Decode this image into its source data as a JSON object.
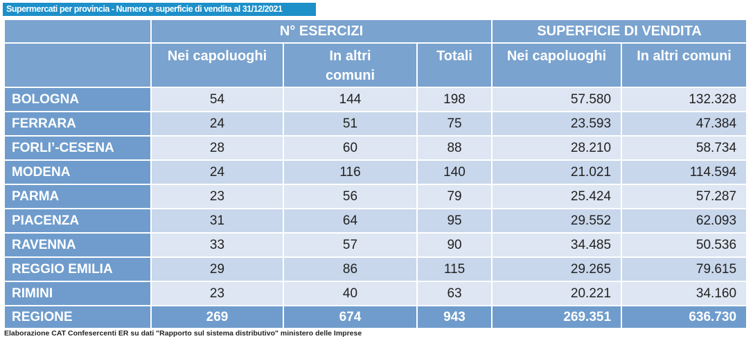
{
  "title": "Supermercati per provincia - Numero e superficie di vendita al 31/12/2021",
  "header": {
    "group_esercizi": "N° ESERCIZI",
    "group_superficie": "SUPERFICIE DI VENDITA",
    "columns": [
      "Nei capoluoghi",
      "In altri comuni",
      "Totali",
      "Nei capoluoghi",
      "In altri comuni"
    ]
  },
  "rows": [
    {
      "label": "BOLOGNA",
      "values": [
        "54",
        "144",
        "198",
        "57.580",
        "132.328"
      ]
    },
    {
      "label": "FERRARA",
      "values": [
        "24",
        "51",
        "75",
        "23.593",
        "47.384"
      ]
    },
    {
      "label": "FORLI’-CESENA",
      "values": [
        "28",
        "60",
        "88",
        "28.210",
        "58.734"
      ]
    },
    {
      "label": "MODENA",
      "values": [
        "24",
        "116",
        "140",
        "21.021",
        "114.594"
      ]
    },
    {
      "label": "PARMA",
      "values": [
        "23",
        "56",
        "79",
        "25.424",
        "57.287"
      ]
    },
    {
      "label": "PIACENZA",
      "values": [
        "31",
        "64",
        "95",
        "29.552",
        "62.093"
      ]
    },
    {
      "label": "RAVENNA",
      "values": [
        "33",
        "57",
        "90",
        "34.485",
        "50.536"
      ]
    },
    {
      "label": "REGGIO EMILIA",
      "values": [
        "29",
        "86",
        "115",
        "29.265",
        "79.615"
      ]
    },
    {
      "label": "RIMINI",
      "values": [
        "23",
        "40",
        "63",
        "20.221",
        "34.160"
      ]
    }
  ],
  "total": {
    "label": "REGIONE",
    "values": [
      "269",
      "674",
      "943",
      "269.351",
      "636.730"
    ]
  },
  "footer": "Elaborazione CAT Confesercenti ER su dati \"Rapporto sul sistema distributivo\" ministero delle Imprese",
  "colors": {
    "title_bg": "#1d8fc9",
    "header_bg": "#7aa3cf",
    "label_bg": "#6f9ccc",
    "row_light": "#dde6f2",
    "row_dark": "#c8d7eb"
  }
}
